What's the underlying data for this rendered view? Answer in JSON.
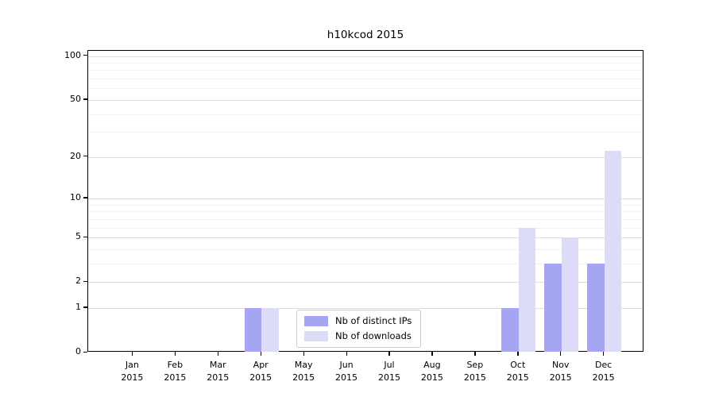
{
  "title": "h10kcod 2015",
  "chart_data": {
    "type": "bar",
    "title": "h10kcod 2015",
    "xlabel": "",
    "ylabel": "",
    "categories": [
      "Jan 2015",
      "Feb 2015",
      "Mar 2015",
      "Apr 2015",
      "May 2015",
      "Jun 2015",
      "Jul 2015",
      "Aug 2015",
      "Sep 2015",
      "Oct 2015",
      "Nov 2015",
      "Dec 2015"
    ],
    "series": [
      {
        "name": "Nb of distinct IPs",
        "color": "#a5a5f3",
        "values": [
          0,
          0,
          0,
          1,
          0,
          0,
          0,
          0,
          0,
          1,
          3,
          3
        ]
      },
      {
        "name": "Nb of downloads",
        "color": "#dcdcf9",
        "values": [
          0,
          0,
          0,
          1,
          0,
          0,
          0,
          0,
          0,
          6,
          5,
          22
        ]
      }
    ],
    "yscale": "log(1+x)",
    "y_axis_ticks": [
      0,
      1,
      2,
      5,
      10,
      20,
      50,
      100
    ],
    "y_minor_gridlines": [
      3,
      4,
      6,
      7,
      8,
      9,
      30,
      40,
      60,
      70,
      80,
      90
    ],
    "ylim": [
      0,
      110
    ],
    "grid": "both",
    "legend_position": "lower center"
  },
  "colors": {
    "major_grid": "#dcdcdc",
    "minor_grid": "#f0f0f0",
    "spine": "#000000",
    "background": "#ffffff"
  }
}
